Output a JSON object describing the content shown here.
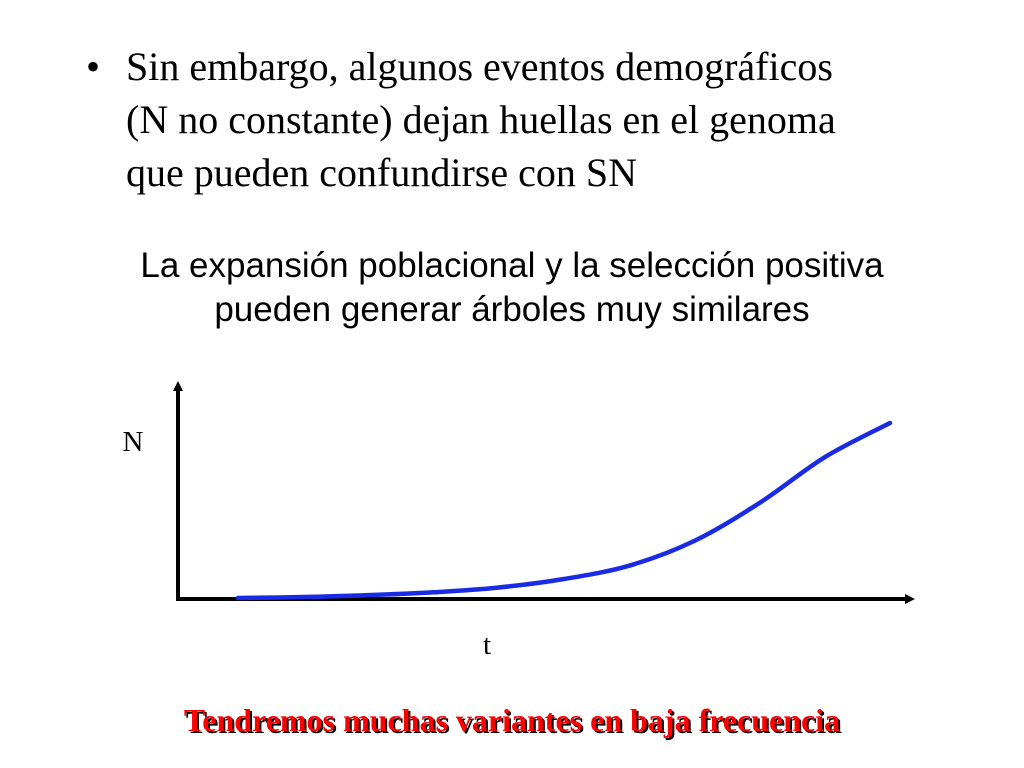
{
  "bullet": {
    "text": "Sin embargo, algunos eventos demográficos\n(N no constante) dejan huellas en el genoma\nque pueden confundirse con SN"
  },
  "subtitle": "La expansión poblacional y la selección positiva\npueden generar árboles muy similares",
  "conclusion": "Tendremos muchas variantes en baja frecuencia",
  "colors": {
    "curve": "#1a2be6",
    "axes": "#000000",
    "conclusion": "#ff0000",
    "conclusion_shadow": "#000000"
  },
  "chart_data": {
    "type": "line",
    "xlabel": "t",
    "ylabel": "N",
    "tick_labels": false,
    "grid": false,
    "series": [
      {
        "points": [
          [
            0.0,
            0.08
          ],
          [
            0.1,
            0.085
          ],
          [
            0.2,
            0.095
          ],
          [
            0.3,
            0.11
          ],
          [
            0.4,
            0.135
          ],
          [
            0.5,
            0.18
          ],
          [
            0.6,
            0.25
          ],
          [
            0.7,
            0.38
          ],
          [
            0.8,
            0.58
          ],
          [
            0.9,
            0.82
          ],
          [
            1.0,
            1.0
          ]
        ]
      }
    ]
  }
}
